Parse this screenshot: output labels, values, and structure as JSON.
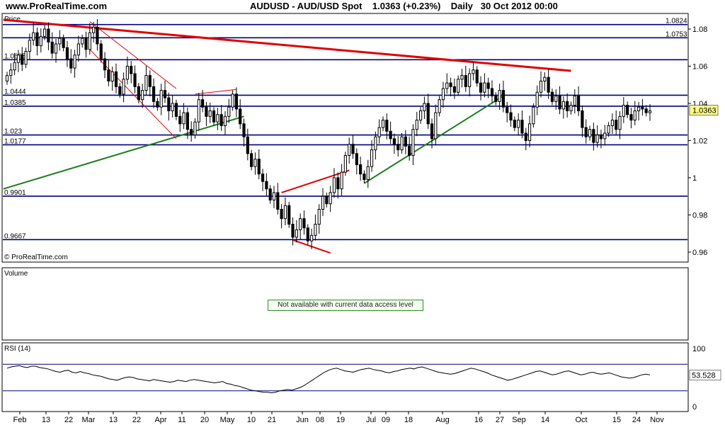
{
  "header": {
    "site": "www.ProRealTime.com",
    "title": "AUDUSD - AUD/USD Spot",
    "price": "1.0363 (+0.23%)",
    "period": "Daily",
    "datetime": "30 Oct 2012 00:00"
  },
  "panels": {
    "price_label": "Price",
    "watermark": "© ProRealTime.com",
    "volume_label": "Volume",
    "volume_notice": "Not available with current data access level",
    "rsi_label": "RSI (14)"
  },
  "colors": {
    "grid_line": "#000080",
    "resistance_red": "#e00000",
    "support_green": "#1e7d1e",
    "highlight_box": "#ffff88",
    "candle_up": "#ffffff",
    "candle_down": "#000000"
  },
  "chart_data": [
    {
      "type": "candlestick",
      "title": "AUDUSD - AUD/USD Spot",
      "ylim": [
        0.955,
        1.088
      ],
      "y_ticks": [
        0.96,
        0.98,
        1,
        1.02,
        1.04,
        1.06,
        1.08
      ],
      "x_labels": [
        "Feb",
        "13",
        "22",
        "Mar",
        "13",
        "22",
        "Apr",
        "11",
        "20",
        "May",
        "10",
        "21",
        "Jun",
        "08",
        "19",
        "Jul",
        "09",
        "18",
        "Aug",
        "16",
        "27",
        "Sep",
        "14",
        "Oct",
        "15",
        "24",
        "Nov"
      ],
      "last_price": "1.0363",
      "horizontal_levels": [
        {
          "value": 1.0824,
          "label": "1.0824"
        },
        {
          "value": 1.0753,
          "label": "1.0753"
        },
        {
          "value": 1.0635,
          "label": "1.0635"
        },
        {
          "value": 1.0444,
          "label": "1.0444"
        },
        {
          "value": 1.0385,
          "label": "1.0385"
        },
        {
          "value": 1.023,
          "label": "1.023"
        },
        {
          "value": 1.0177,
          "label": "1.0177"
        },
        {
          "value": 0.9901,
          "label": "0.9901"
        },
        {
          "value": 0.9667,
          "label": "0.9667"
        }
      ],
      "closes": [
        1.055,
        1.058,
        1.062,
        1.066,
        1.061,
        1.068,
        1.074,
        1.078,
        1.071,
        1.076,
        1.08,
        1.073,
        1.067,
        1.072,
        1.075,
        1.07,
        1.064,
        1.059,
        1.066,
        1.072,
        1.075,
        1.069,
        1.078,
        1.081,
        1.072,
        1.064,
        1.058,
        1.052,
        1.057,
        1.049,
        1.045,
        1.053,
        1.06,
        1.056,
        1.049,
        1.042,
        1.047,
        1.055,
        1.049,
        1.041,
        1.038,
        1.047,
        1.043,
        1.036,
        1.04,
        1.033,
        1.029,
        1.035,
        1.026,
        1.023,
        1.03,
        1.042,
        1.038,
        1.033,
        1.036,
        1.03,
        1.034,
        1.028,
        1.033,
        1.038,
        1.045,
        1.037,
        1.029,
        1.022,
        1.013,
        1.006,
        1.01,
        1.002,
        0.998,
        0.994,
        0.988,
        0.992,
        0.983,
        0.978,
        0.985,
        0.975,
        0.968,
        0.972,
        0.978,
        0.973,
        0.966,
        0.969,
        0.975,
        0.983,
        0.99,
        0.986,
        0.992,
        1.0,
        0.994,
        1.003,
        1.012,
        1.018,
        1.013,
        1.007,
        1.002,
        0.999,
        1.006,
        1.015,
        1.022,
        1.027,
        1.031,
        1.025,
        1.021,
        1.018,
        1.015,
        1.022,
        1.017,
        1.012,
        1.026,
        1.031,
        1.036,
        1.04,
        1.029,
        1.021,
        1.035,
        1.042,
        1.048,
        1.051,
        1.049,
        1.046,
        1.053,
        1.055,
        1.049,
        1.056,
        1.058,
        1.051,
        1.046,
        1.051,
        1.048,
        1.044,
        1.041,
        1.047,
        1.038,
        1.035,
        1.031,
        1.027,
        1.031,
        1.024,
        1.02,
        1.029,
        1.038,
        1.046,
        1.052,
        1.054,
        1.046,
        1.041,
        1.044,
        1.037,
        1.041,
        1.036,
        1.039,
        1.044,
        1.036,
        1.027,
        1.022,
        1.026,
        1.019,
        1.023,
        1.021,
        1.024,
        1.028,
        1.031,
        1.026,
        1.033,
        1.039,
        1.034,
        1.031,
        1.036,
        1.038,
        1.037,
        1.035,
        1.036
      ]
    },
    {
      "type": "line",
      "title": "RSI (14)",
      "ylim": [
        0,
        100
      ],
      "y_ticks": [
        0,
        100
      ],
      "levels": [
        70,
        30
      ],
      "last_value": "53.528",
      "values": [
        64,
        66,
        67,
        68,
        66,
        65,
        67,
        67,
        65,
        64,
        63,
        61,
        59,
        58,
        60,
        61,
        58,
        57,
        59,
        57,
        56,
        54,
        53,
        52,
        50,
        48,
        47,
        46,
        48,
        50,
        51,
        50,
        48,
        47,
        46,
        45,
        47,
        46,
        45,
        44,
        43,
        44,
        46,
        45,
        44,
        46,
        47,
        46,
        45,
        44,
        43,
        42,
        43,
        44,
        41,
        40,
        38,
        37,
        35,
        33,
        31,
        30,
        29,
        28,
        28,
        27,
        28,
        30,
        31,
        32,
        31,
        33,
        35,
        38,
        42,
        46,
        50,
        54,
        58,
        61,
        63,
        64,
        62,
        60,
        59,
        58,
        60,
        62,
        63,
        64,
        62,
        61,
        60,
        58,
        57,
        59,
        60,
        62,
        63,
        64,
        63,
        65,
        66,
        64,
        62,
        60,
        58,
        57,
        56,
        55,
        56,
        58,
        60,
        62,
        64,
        63,
        61,
        59,
        57,
        54,
        52,
        50,
        48,
        46,
        47,
        49,
        51,
        53,
        55,
        57,
        59,
        60,
        58,
        56,
        54,
        55,
        57,
        59,
        60,
        58,
        56,
        54,
        55,
        57,
        58,
        56,
        55,
        56,
        57,
        55,
        53,
        51,
        50,
        49,
        50,
        52,
        54,
        55,
        54
      ]
    }
  ]
}
